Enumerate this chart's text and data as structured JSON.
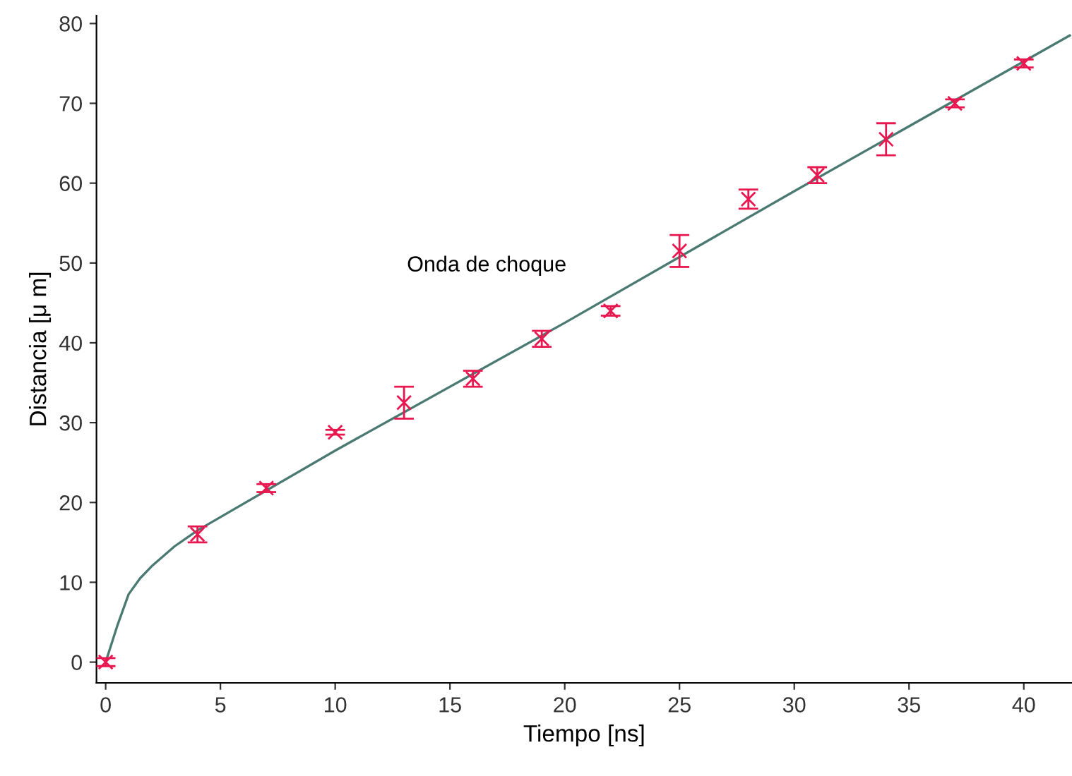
{
  "chart_data": {
    "type": "scatter",
    "xlabel": "Tiempo [ns]",
    "ylabel": "Distancia [μ m]",
    "xlim": [
      -0.4,
      42.1
    ],
    "ylim": [
      -2.6,
      81
    ],
    "xticks": [
      0,
      5,
      10,
      15,
      20,
      25,
      30,
      35,
      40
    ],
    "yticks": [
      0,
      10,
      20,
      30,
      40,
      50,
      60,
      70,
      80
    ],
    "grid": false,
    "series": [
      {
        "type": "line",
        "color": "#4a7a72",
        "x": [
          0,
          0.5,
          1,
          1.5,
          2,
          3,
          4,
          10,
          20,
          30,
          42
        ],
        "values": [
          0,
          4.5,
          8.5,
          10.5,
          12,
          14.5,
          16.5,
          26.5,
          42.5,
          59,
          78.5
        ]
      },
      {
        "marker": "cross",
        "color": "#e8174f",
        "x": [
          0,
          4,
          7,
          10,
          13,
          16,
          19,
          22,
          25,
          28,
          31,
          34,
          37,
          40
        ],
        "values": [
          0,
          16,
          21.8,
          28.8,
          32.5,
          35.5,
          40.5,
          44,
          51.5,
          58,
          61,
          65.5,
          70,
          75
        ],
        "errors": [
          0.5,
          1,
          0.5,
          0.3,
          2,
          1,
          1,
          0.6,
          2,
          1.2,
          1,
          2,
          0.5,
          0.5
        ]
      }
    ],
    "annotations": [
      "Onda de choque"
    ]
  }
}
